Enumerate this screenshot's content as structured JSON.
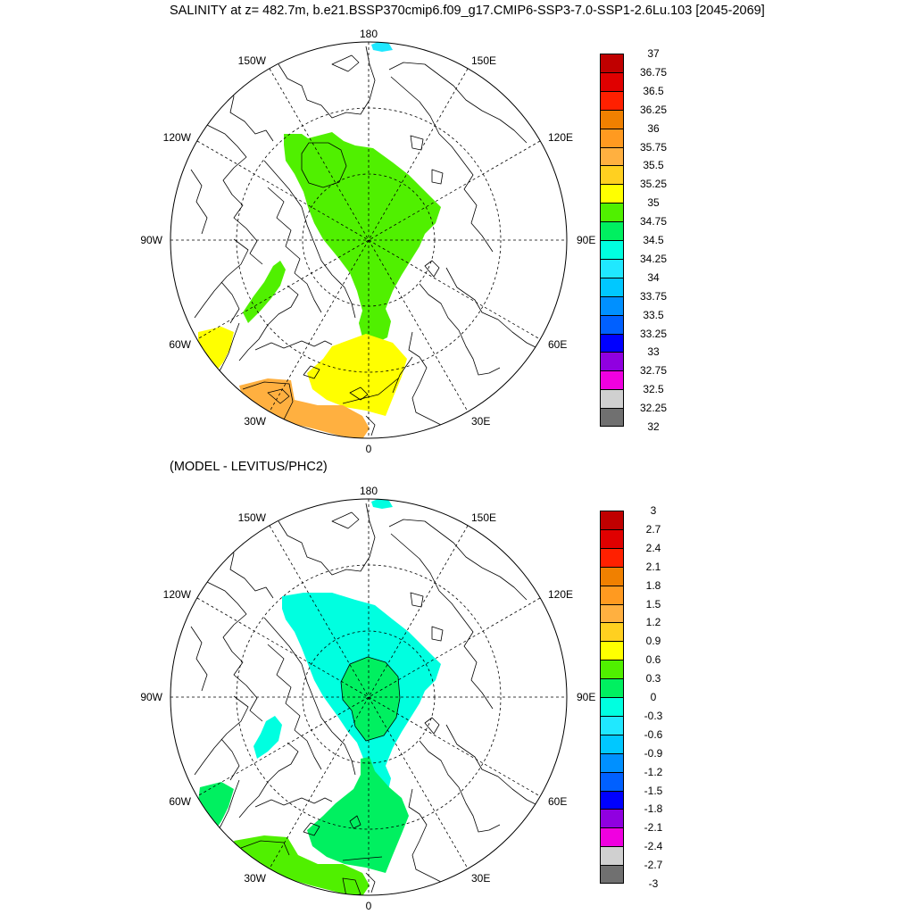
{
  "title": "SALINITY at z= 482.7m, b.e21.BSSP370cmip6.f09_g17.CMIP6-SSP3-7.0-SSP1-2.6Lu.103 [2045-2069]",
  "subtitle": "(MODEL - LEVITUS/PHC2)",
  "lon_labels": {
    "top": "180",
    "bottom": "0",
    "w150": "150W",
    "w120": "120W",
    "w90": "90W",
    "w60": "60W",
    "w30": "30W",
    "e150": "150E",
    "e120": "120E",
    "e90": "90E",
    "e60": "60E",
    "e30": "30E"
  },
  "top_colorbar": {
    "labels": [
      "37",
      "36.75",
      "36.5",
      "36.25",
      "36",
      "35.75",
      "35.5",
      "35.25",
      "35",
      "34.75",
      "34.5",
      "34.25",
      "34",
      "33.75",
      "33.5",
      "33.25",
      "33",
      "32.75",
      "32.5",
      "32.25",
      "32"
    ],
    "colors": [
      "#c00000",
      "#e00000",
      "#ff2000",
      "#f08000",
      "#ff9a20",
      "#ffb040",
      "#ffd020",
      "#ffff00",
      "#50f000",
      "#00f060",
      "#00ffe0",
      "#20e8ff",
      "#00c8ff",
      "#0090ff",
      "#0060ff",
      "#0000ff",
      "#9000e0",
      "#f000e0",
      "#d0d0d0",
      "#707070"
    ]
  },
  "bottom_colorbar": {
    "labels": [
      "3",
      "2.7",
      "2.4",
      "2.1",
      "1.8",
      "1.5",
      "1.2",
      "0.9",
      "0.6",
      "0.3",
      "0",
      "-0.3",
      "-0.6",
      "-0.9",
      "-1.2",
      "-1.5",
      "-1.8",
      "-2.1",
      "-2.4",
      "-2.7",
      "-3"
    ],
    "colors": [
      "#c00000",
      "#e00000",
      "#ff2000",
      "#f08000",
      "#ff9a20",
      "#ffb040",
      "#ffd020",
      "#ffff00",
      "#50f000",
      "#00f060",
      "#00ffe0",
      "#20e8ff",
      "#00c8ff",
      "#0090ff",
      "#0060ff",
      "#0000ff",
      "#9000e0",
      "#f000e0",
      "#d0d0d0",
      "#707070"
    ]
  },
  "field_colors": {
    "top_central": "#50f000",
    "top_core": "#50f000",
    "top_canada": "#50f000",
    "top_greenland_w": "#ffff00",
    "top_fram": "#ffff00",
    "top_iceland": "#ffb040",
    "top_bering": "#20e8ff",
    "bottom_central": "#00ffe0",
    "bottom_core": "#00f060",
    "bottom_canada": "#00ffe0",
    "bottom_greenland_w": "#00f060",
    "bottom_fram": "#00f060",
    "bottom_iceland": "#50f000",
    "bottom_bering": "#00ffe0"
  }
}
